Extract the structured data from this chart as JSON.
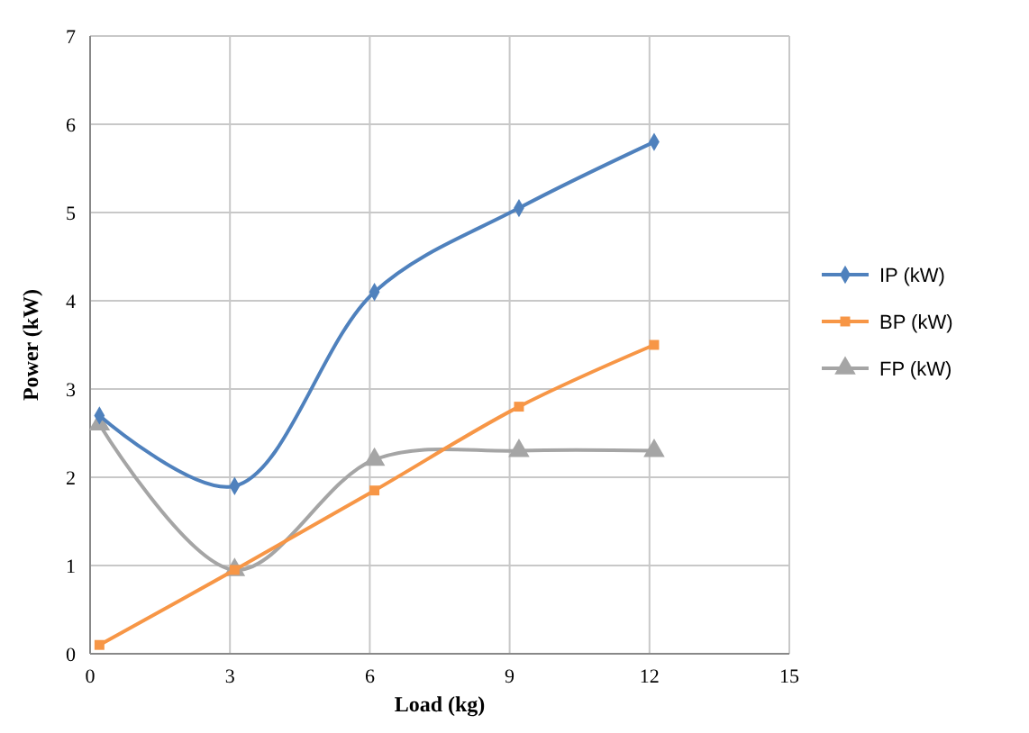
{
  "chart_data": {
    "type": "line",
    "xlabel": "Load (kg)",
    "ylabel": "Power (kW)",
    "xlim": [
      0,
      15
    ],
    "xticks": [
      0,
      3,
      6,
      9,
      12,
      15
    ],
    "ylim": [
      0,
      7
    ],
    "yticks": [
      0,
      1,
      2,
      3,
      4,
      5,
      6,
      7
    ],
    "grid": true,
    "legend": "right",
    "series": [
      {
        "name": "IP (kW)",
        "color": "#4f81bd",
        "marker": "diamond",
        "x": [
          0.2,
          3.1,
          6.1,
          9.2,
          12.1
        ],
        "values": [
          2.7,
          1.9,
          4.1,
          5.05,
          5.8
        ]
      },
      {
        "name": "BP (kW)",
        "color": "#f79646",
        "marker": "square",
        "x": [
          0.2,
          3.1,
          6.1,
          9.2,
          12.1
        ],
        "values": [
          0.1,
          0.95,
          1.85,
          2.8,
          3.5
        ]
      },
      {
        "name": "FP (kW)",
        "color": "#a5a5a5",
        "marker": "triangle",
        "x": [
          0.2,
          3.1,
          6.1,
          9.2,
          12.1
        ],
        "values": [
          2.6,
          0.95,
          2.2,
          2.3,
          2.3
        ]
      }
    ]
  }
}
